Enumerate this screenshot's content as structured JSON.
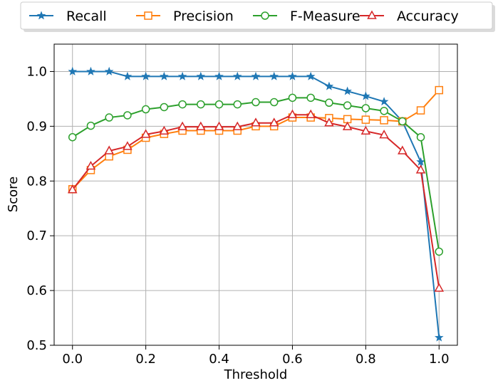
{
  "chart_data": {
    "type": "line",
    "title": "",
    "xlabel": "Threshold",
    "ylabel": "Score",
    "xlim": [
      -0.05,
      1.05
    ],
    "ylim": [
      0.5,
      1.05
    ],
    "xticks": [
      0.0,
      0.2,
      0.4,
      0.6,
      0.8,
      1.0
    ],
    "xtick_labels": [
      "0.0",
      "0.2",
      "0.4",
      "0.6",
      "0.8",
      "1.0"
    ],
    "yticks": [
      0.5,
      0.6,
      0.7,
      0.8,
      0.9,
      1.0
    ],
    "ytick_labels": [
      "0.5",
      "0.6",
      "0.7",
      "0.8",
      "0.9",
      "1.0"
    ],
    "grid": true,
    "legend_position": "top, outside plot",
    "x": [
      0.0,
      0.05,
      0.1,
      0.15,
      0.2,
      0.25,
      0.3,
      0.35,
      0.4,
      0.45,
      0.5,
      0.55,
      0.6,
      0.65,
      0.7,
      0.75,
      0.8,
      0.85,
      0.9,
      0.95,
      1.0
    ],
    "series": [
      {
        "name": "Recall",
        "color": "#1f77b4",
        "marker": "star",
        "values": [
          1.0,
          1.0,
          1.0,
          0.991,
          0.991,
          0.991,
          0.991,
          0.991,
          0.991,
          0.991,
          0.991,
          0.991,
          0.991,
          0.991,
          0.973,
          0.964,
          0.955,
          0.945,
          0.909,
          0.835,
          0.514
        ]
      },
      {
        "name": "Precision",
        "color": "#ff7f0e",
        "marker": "square",
        "values": [
          0.785,
          0.82,
          0.845,
          0.857,
          0.879,
          0.886,
          0.892,
          0.892,
          0.892,
          0.892,
          0.9,
          0.9,
          0.916,
          0.916,
          0.915,
          0.913,
          0.912,
          0.911,
          0.909,
          0.929,
          0.966
        ]
      },
      {
        "name": "F-Measure",
        "color": "#2ca02c",
        "marker": "circle",
        "values": [
          0.88,
          0.901,
          0.916,
          0.92,
          0.931,
          0.935,
          0.94,
          0.94,
          0.94,
          0.94,
          0.944,
          0.944,
          0.952,
          0.952,
          0.943,
          0.938,
          0.933,
          0.928,
          0.909,
          0.88,
          0.671
        ]
      },
      {
        "name": "Accuracy",
        "color": "#d62728",
        "marker": "triangle",
        "values": [
          0.784,
          0.827,
          0.855,
          0.863,
          0.885,
          0.891,
          0.899,
          0.899,
          0.899,
          0.899,
          0.906,
          0.906,
          0.921,
          0.921,
          0.906,
          0.899,
          0.891,
          0.884,
          0.855,
          0.82,
          0.604
        ]
      }
    ]
  }
}
